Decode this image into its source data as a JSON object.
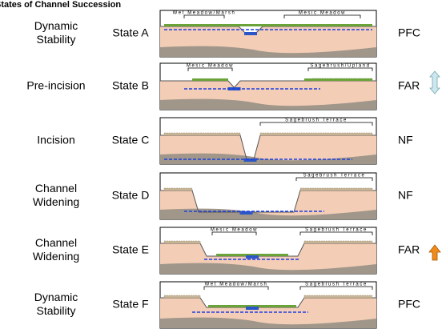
{
  "title": "States of Channel Succession",
  "rows": [
    {
      "stage": [
        "Dynamic",
        "Stability"
      ],
      "state": "State A",
      "labels": [
        "Wet Meadow/Marsh",
        "Mesic Meadow"
      ],
      "status": "PFC"
    },
    {
      "stage": [
        "Pre-incision"
      ],
      "state": "State B",
      "labels": [
        "Mesic Meadow",
        "Sagebrush/Upland"
      ],
      "status": "FAR"
    },
    {
      "stage": [
        "Incision"
      ],
      "state": "State C",
      "labels": [
        "Sagebrush Terrace"
      ],
      "status": "NF"
    },
    {
      "stage": [
        "Channel",
        "Widening"
      ],
      "state": "State D",
      "labels": [
        "Sagebrush Terrace"
      ],
      "status": "NF"
    },
    {
      "stage": [
        "Channel",
        "Widening"
      ],
      "state": "State E",
      "labels": [
        "Mesic Meadow",
        "Sagebrush Terrace"
      ],
      "status": "FAR"
    },
    {
      "stage": [
        "Dynamic",
        "Stability"
      ],
      "state": "State F",
      "labels": [
        "Wet Meadow/Marsh",
        "Sagebrush Terrace"
      ],
      "status": "PFC"
    }
  ]
}
